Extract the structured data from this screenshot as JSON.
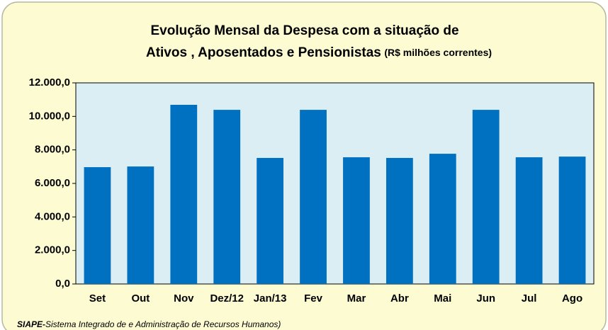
{
  "chart_data": {
    "type": "bar",
    "title": [
      "Evolução Mensal da Despesa com a situação de",
      "Ativos , Aposentados e Pensionistas"
    ],
    "subtitle": "(R$ milhões correntes)",
    "footnote": [
      "SIAPE-",
      "Sistema Integrado de e Administração de Recursos Humanos)"
    ],
    "categories": [
      "Set",
      "Out",
      "Nov",
      "Dez/12",
      "Jan/13",
      "Fev",
      "Mar",
      "Abr",
      "Mai",
      "Jun",
      "Jul",
      "Ago"
    ],
    "values": [
      6970,
      7010,
      10690,
      10390,
      7520,
      10390,
      7560,
      7520,
      7770,
      10390,
      7560,
      7600
    ],
    "color": "#0070c0",
    "ylim": [
      0,
      12000
    ],
    "yticks": [
      {
        "value": 0,
        "label": "0,0"
      },
      {
        "value": 2000,
        "label": "2.000,0"
      },
      {
        "value": 4000,
        "label": "4.000,0"
      },
      {
        "value": 6000,
        "label": "6.000,0"
      },
      {
        "value": 8000,
        "label": "8.000,0"
      },
      {
        "value": 10000,
        "label": "10.000,0"
      },
      {
        "value": 12000,
        "label": "12.000,0"
      }
    ],
    "grid": false
  }
}
